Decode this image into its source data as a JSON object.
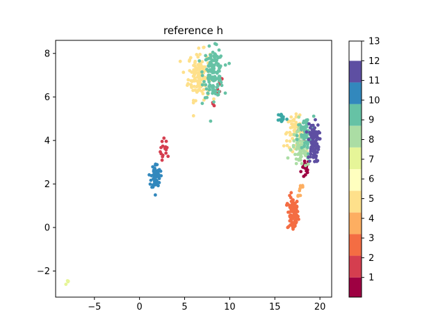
{
  "chart_data": {
    "type": "scatter",
    "title": "reference h",
    "xlabel": "",
    "ylabel": "",
    "xlim": [
      -9.3,
      21.3
    ],
    "ylim": [
      -3.2,
      8.6
    ],
    "xticks": [
      -5,
      0,
      5,
      10,
      15,
      20
    ],
    "yticks": [
      -2,
      0,
      2,
      4,
      6,
      8
    ],
    "grid": false,
    "colormap": "Spectral",
    "colorbar": {
      "range": [
        0,
        13
      ],
      "ticks": [
        1,
        2,
        3,
        4,
        5,
        6,
        7,
        8,
        9,
        10,
        11,
        12,
        13
      ],
      "colors": [
        "#9e0142",
        "#d53e4f",
        "#f46d43",
        "#fdae61",
        "#fee08b",
        "#ffffbf",
        "#e6f598",
        "#abdda4",
        "#66c2a5",
        "#3288bd",
        "#5e4fa2",
        "#ffffff"
      ]
    },
    "clusters": [
      {
        "label": 1,
        "cx": 18.4,
        "cy": 2.7,
        "sx": 0.25,
        "sy": 0.25,
        "n": 18,
        "color": "#9e0142"
      },
      {
        "label": 1,
        "cx": 17.9,
        "cy": 4.5,
        "sx": 0.3,
        "sy": 0.3,
        "n": 6,
        "color": "#9e0142"
      },
      {
        "label": 2,
        "cx": 2.8,
        "cy": 3.5,
        "sx": 0.25,
        "sy": 0.3,
        "n": 16,
        "color": "#d53e4f"
      },
      {
        "label": 2,
        "cx": 8.9,
        "cy": 6.4,
        "sx": 0.15,
        "sy": 0.3,
        "n": 8,
        "color": "#d53e4f"
      },
      {
        "label": 2,
        "cx": 8.2,
        "cy": 5.8,
        "sx": 0.1,
        "sy": 0.1,
        "n": 3,
        "color": "#d53e4f"
      },
      {
        "label": 3,
        "cx": 17.0,
        "cy": 0.6,
        "sx": 0.3,
        "sy": 0.4,
        "n": 90,
        "color": "#f46d43"
      },
      {
        "label": 4,
        "cx": 17.8,
        "cy": 1.8,
        "sx": 0.25,
        "sy": 0.3,
        "n": 10,
        "color": "#fdae61"
      },
      {
        "label": 5,
        "cx": 6.6,
        "cy": 7.0,
        "sx": 0.6,
        "sy": 0.55,
        "n": 130,
        "color": "#fee08b"
      },
      {
        "label": 5,
        "cx": 17.2,
        "cy": 4.4,
        "sx": 0.6,
        "sy": 0.35,
        "n": 55,
        "color": "#fee08b"
      },
      {
        "label": 7,
        "cx": -8.0,
        "cy": -2.55,
        "sx": 0.1,
        "sy": 0.1,
        "n": 4,
        "color": "#e6f598"
      },
      {
        "label": 8,
        "cx": 17.9,
        "cy": 3.6,
        "sx": 0.55,
        "sy": 0.45,
        "n": 80,
        "color": "#abdda4"
      },
      {
        "label": 9,
        "cx": 8.2,
        "cy": 7.1,
        "sx": 0.55,
        "sy": 0.55,
        "n": 140,
        "color": "#66c2a5"
      },
      {
        "label": 9,
        "cx": 18.4,
        "cy": 4.2,
        "sx": 0.45,
        "sy": 0.45,
        "n": 70,
        "color": "#66c2a5"
      },
      {
        "label": 10,
        "cx": 15.8,
        "cy": 5.05,
        "sx": 0.25,
        "sy": 0.12,
        "n": 14,
        "color": "#3ba8a5"
      },
      {
        "label": 11,
        "cx": 1.8,
        "cy": 2.35,
        "sx": 0.25,
        "sy": 0.3,
        "n": 70,
        "color": "#3288bd"
      },
      {
        "label": 12,
        "cx": 19.3,
        "cy": 3.9,
        "sx": 0.3,
        "sy": 0.45,
        "n": 90,
        "color": "#5e4fa2"
      }
    ]
  }
}
